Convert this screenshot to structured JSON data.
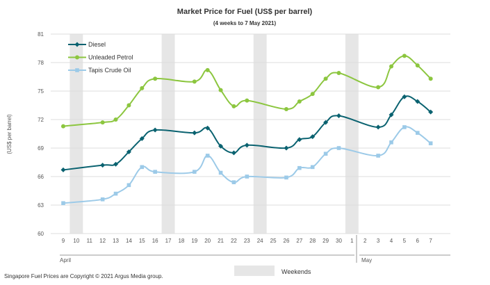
{
  "chart_data": {
    "type": "line",
    "title": "Market Price for Fuel (US$ per barrel)",
    "subtitle": "(4 weeks to 7 May 2021)",
    "ylabel": "(US$ per barrel)",
    "xlabel": "",
    "ylim": [
      60,
      81
    ],
    "yticks": [
      60,
      63,
      66,
      69,
      72,
      75,
      78,
      81
    ],
    "categories": [
      "9",
      "10",
      "11",
      "12",
      "13",
      "14",
      "15",
      "16",
      "17",
      "18",
      "19",
      "20",
      "21",
      "22",
      "23",
      "24",
      "25",
      "26",
      "27",
      "28",
      "29",
      "30",
      "1",
      "2",
      "3",
      "4",
      "5",
      "6",
      "7"
    ],
    "months": [
      {
        "label": "April",
        "start_index": 0
      },
      {
        "label": "May",
        "start_index": 22
      }
    ],
    "weekend_ranges": [
      [
        0,
        2
      ],
      [
        7,
        9
      ],
      [
        14,
        16
      ],
      [
        21,
        23
      ]
    ],
    "weekend_label": "Weekends",
    "grid": true,
    "legend_position": "top-left",
    "series": [
      {
        "name": "Diesel",
        "color": "#0a6270",
        "marker": "diamond",
        "values": [
          66.7,
          null,
          null,
          67.2,
          67.3,
          68.6,
          70.0,
          70.9,
          null,
          null,
          70.6,
          71.1,
          69.2,
          68.5,
          69.3,
          null,
          null,
          69.0,
          69.9,
          70.2,
          71.7,
          72.4,
          null,
          null,
          71.2,
          72.5,
          74.4,
          73.9,
          72.8
        ]
      },
      {
        "name": "Unleaded Petrol",
        "color": "#8cc63f",
        "marker": "circle",
        "values": [
          71.3,
          null,
          null,
          71.7,
          72.0,
          73.5,
          75.3,
          76.3,
          null,
          null,
          76.0,
          77.2,
          75.1,
          73.4,
          74.0,
          null,
          null,
          73.1,
          73.9,
          74.7,
          76.3,
          76.9,
          null,
          null,
          75.4,
          77.6,
          78.7,
          77.7,
          76.3
        ]
      },
      {
        "name": "Tapis Crude Oil",
        "color": "#9ccae8",
        "marker": "square",
        "values": [
          63.2,
          null,
          null,
          63.6,
          64.2,
          65.1,
          67.0,
          66.5,
          null,
          null,
          66.5,
          68.2,
          66.4,
          65.4,
          66.0,
          null,
          null,
          65.9,
          66.9,
          67.0,
          68.4,
          69.0,
          null,
          null,
          68.2,
          69.6,
          71.2,
          70.6,
          69.5
        ]
      }
    ]
  },
  "footnote": "Singapore Fuel Prices are Copyright © 2021 Argus Media group."
}
